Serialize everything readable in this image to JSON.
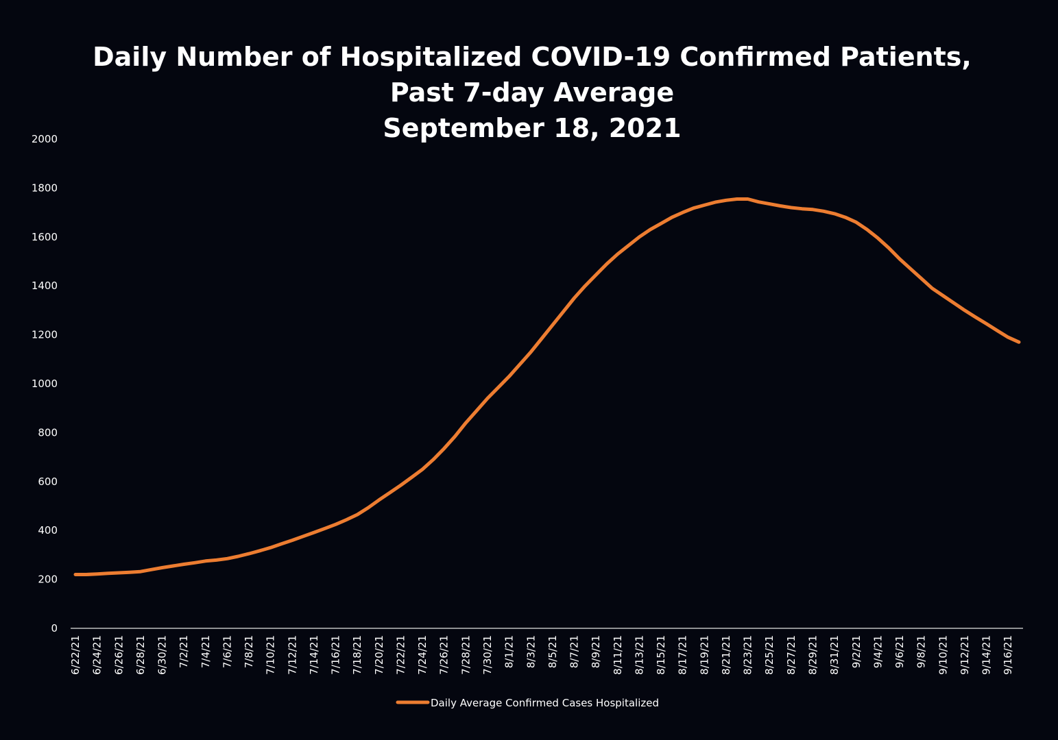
{
  "chart_data": {
    "type": "line",
    "title": [
      "Daily Number of Hospitalized COVID-19 Confirmed Patients,",
      "Past 7-day Average",
      "September 18, 2021"
    ],
    "categories": [
      "6/22/21",
      null,
      "6/24/21",
      null,
      "6/26/21",
      null,
      "6/28/21",
      null,
      "6/30/21",
      null,
      "7/2/21",
      null,
      "7/4/21",
      null,
      "7/6/21",
      null,
      "7/8/21",
      null,
      "7/10/21",
      null,
      "7/12/21",
      null,
      "7/14/21",
      null,
      "7/16/21",
      null,
      "7/18/21",
      null,
      "7/20/21",
      null,
      "7/22/21",
      null,
      "7/24/21",
      null,
      "7/26/21",
      null,
      "7/28/21",
      null,
      "7/30/21",
      null,
      "8/1/21",
      null,
      "8/3/21",
      null,
      "8/5/21",
      null,
      "8/7/21",
      null,
      "8/9/21",
      null,
      "8/11/21",
      null,
      "8/13/21",
      null,
      "8/15/21",
      null,
      "8/17/21",
      null,
      "8/19/21",
      null,
      "8/21/21",
      null,
      "8/23/21",
      null,
      "8/25/21",
      null,
      "8/27/21",
      null,
      "8/29/21",
      null,
      "8/31/21",
      null,
      "9/2/21",
      null,
      "9/4/21",
      null,
      "9/6/21",
      null,
      "9/8/21",
      null,
      "9/10/21",
      null,
      "9/12/21",
      null,
      "9/14/21",
      null,
      "9/16/21",
      null
    ],
    "series": [
      {
        "name": "Daily Average Confirmed Cases Hospitalized",
        "color": "#ed7d31",
        "values": [
          220,
          220,
          222,
          225,
          227,
          229,
          232,
          240,
          248,
          255,
          262,
          268,
          275,
          279,
          285,
          294,
          305,
          317,
          330,
          345,
          360,
          376,
          392,
          408,
          425,
          444,
          465,
          493,
          525,
          555,
          585,
          617,
          650,
          690,
          735,
          785,
          840,
          890,
          940,
          985,
          1030,
          1080,
          1130,
          1185,
          1240,
          1295,
          1350,
          1400,
          1445,
          1490,
          1530,
          1565,
          1600,
          1630,
          1655,
          1680,
          1700,
          1718,
          1730,
          1742,
          1750,
          1755,
          1755,
          1743,
          1735,
          1727,
          1720,
          1715,
          1712,
          1705,
          1695,
          1680,
          1660,
          1630,
          1595,
          1555,
          1510,
          1470,
          1430,
          1390,
          1360,
          1330,
          1300,
          1272,
          1245,
          1217,
          1190,
          1170
        ]
      }
    ],
    "ylim": [
      0,
      2000
    ],
    "yticks": [
      0,
      200,
      400,
      600,
      800,
      1000,
      1200,
      1400,
      1600,
      1800,
      2000
    ],
    "grid": false,
    "legend": "bottom"
  }
}
